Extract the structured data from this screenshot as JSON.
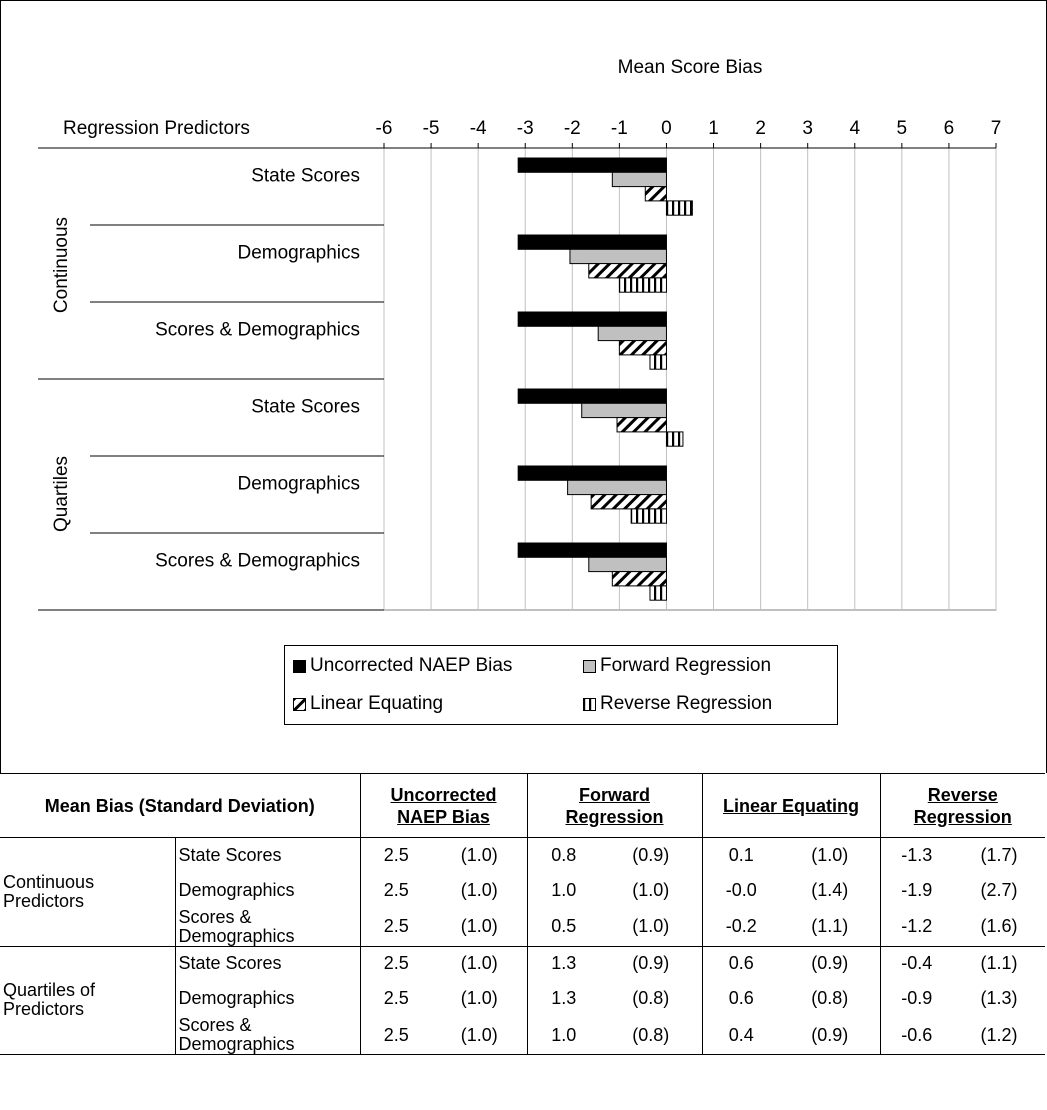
{
  "chart_data": {
    "type": "bar",
    "orientation": "horizontal",
    "title": "Mean Score Bias",
    "ylabel": "Regression Predictors",
    "xlim": [
      -6,
      7
    ],
    "x_ticks": [
      "-6",
      "-5",
      "-4",
      "-3",
      "-2",
      "-1",
      "0",
      "1",
      "2",
      "3",
      "4",
      "5",
      "6",
      "7"
    ],
    "grid": true,
    "groups": [
      "Continuous",
      "Quartiles"
    ],
    "categories": [
      "State Scores",
      "Demographics",
      "Scores & Demographics",
      "State Scores",
      "Demographics",
      "Scores & Demographics"
    ],
    "series": [
      {
        "name": "Uncorrected NAEP Bias",
        "values": [
          -3.15,
          -3.15,
          -3.15,
          -3.15,
          -3.15,
          -3.15
        ]
      },
      {
        "name": "Forward Regression",
        "values": [
          -1.15,
          -2.05,
          -1.45,
          -1.8,
          -2.1,
          -1.65
        ]
      },
      {
        "name": "Linear Equating",
        "values": [
          -0.45,
          -1.65,
          -1.0,
          -1.05,
          -1.6,
          -1.15
        ]
      },
      {
        "name": "Reverse Regression",
        "values": [
          0.55,
          -1.0,
          -0.35,
          0.35,
          -0.75,
          -0.35
        ]
      }
    ],
    "legend_position": "bottom"
  },
  "colors": {
    "Uncorrected NAEP Bias": "#000000",
    "Forward Regression": "#c0c0c0",
    "Linear Equating": "diagonal-hatch",
    "Reverse Regression": "vertical-hatch",
    "grid": "#c0c0c0"
  },
  "table": {
    "header": {
      "title": "Mean Bias (Standard Deviation)",
      "columns": [
        "Uncorrected NAEP Bias",
        "Forward Regression",
        "Linear Equating",
        "Reverse Regression"
      ]
    },
    "groups": [
      {
        "label": "Continuous Predictors",
        "rows": [
          {
            "label": "State Scores",
            "cells": [
              "2.5",
              "(1.0)",
              "0.8",
              "(0.9)",
              "0.1",
              "(1.0)",
              "-1.3",
              "(1.7)"
            ]
          },
          {
            "label": "Demographics",
            "cells": [
              "2.5",
              "(1.0)",
              "1.0",
              "(1.0)",
              "-0.0",
              "(1.4)",
              "-1.9",
              "(2.7)"
            ]
          },
          {
            "label": "Scores & Demographics",
            "cells": [
              "2.5",
              "(1.0)",
              "0.5",
              "(1.0)",
              "-0.2",
              "(1.1)",
              "-1.2",
              "(1.6)"
            ]
          }
        ]
      },
      {
        "label": "Quartiles of Predictors",
        "rows": [
          {
            "label": "State Scores",
            "cells": [
              "2.5",
              "(1.0)",
              "1.3",
              "(0.9)",
              "0.6",
              "(0.9)",
              "-0.4",
              "(1.1)"
            ]
          },
          {
            "label": "Demographics",
            "cells": [
              "2.5",
              "(1.0)",
              "1.3",
              "(0.8)",
              "0.6",
              "(0.8)",
              "-0.9",
              "(1.3)"
            ]
          },
          {
            "label": "Scores & Demographics",
            "cells": [
              "2.5",
              "(1.0)",
              "1.0",
              "(0.8)",
              "0.4",
              "(0.9)",
              "-0.6",
              "(1.2)"
            ]
          }
        ]
      }
    ]
  }
}
